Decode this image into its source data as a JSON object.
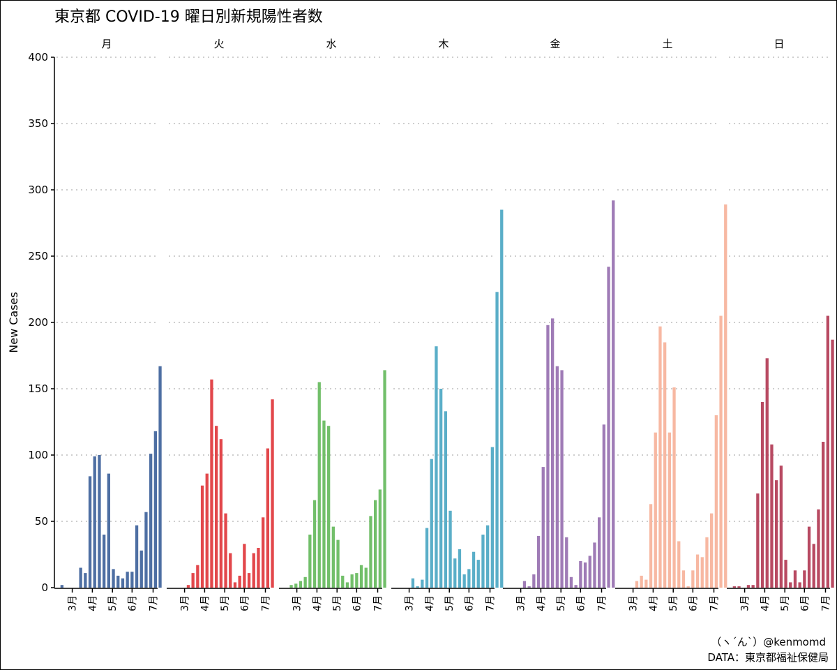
{
  "chart_data": {
    "type": "bar",
    "title": "東京都 COVID-19 曜日別新規陽性者数",
    "ylabel": "New Cases",
    "xlabel": "",
    "ylim": [
      0,
      400
    ],
    "y_ticks": [
      0,
      50,
      100,
      150,
      200,
      250,
      300,
      350,
      400
    ],
    "y_tick_labels": [
      "0",
      "50",
      "100",
      "150",
      "200",
      "250",
      "300",
      "350",
      "400"
    ],
    "grid": "horizontal dotted",
    "x_tick_labels": [
      "3月",
      "4月",
      "5月",
      "6月",
      "7月"
    ],
    "x_tick_positions": [
      2.2,
      6.5,
      10.8,
      15.0,
      19.5
    ],
    "facets": [
      {
        "label": "月",
        "color": "#4e6fa3",
        "values": [
          2,
          0,
          0,
          0,
          15,
          11,
          84,
          99,
          100,
          40,
          86,
          14,
          9,
          7,
          12,
          12,
          47,
          28,
          57,
          101,
          118,
          167
        ]
      },
      {
        "label": "火",
        "color": "#e2474b",
        "values": [
          0,
          0,
          0,
          2,
          11,
          17,
          77,
          86,
          157,
          122,
          112,
          56,
          26,
          4,
          9,
          33,
          11,
          26,
          30,
          53,
          105,
          142
        ]
      },
      {
        "label": "水",
        "color": "#72bf6a",
        "values": [
          0,
          2,
          3,
          5,
          8,
          40,
          66,
          155,
          126,
          122,
          46,
          36,
          9,
          4,
          10,
          11,
          17,
          15,
          54,
          66,
          74,
          164
        ]
      },
      {
        "label": "木",
        "color": "#5aaec8",
        "values": [
          0,
          0,
          0,
          7,
          1,
          6,
          45,
          97,
          182,
          150,
          133,
          58,
          22,
          29,
          10,
          14,
          27,
          21,
          40,
          47,
          106,
          223,
          285
        ]
      },
      {
        "label": "金",
        "color": "#9f7bb6",
        "values": [
          0,
          0,
          0,
          5,
          1,
          10,
          39,
          91,
          198,
          203,
          167,
          164,
          38,
          8,
          2,
          20,
          19,
          24,
          34,
          53,
          123,
          242,
          292
        ]
      },
      {
        "label": "土",
        "color": "#f7b8a2",
        "values": [
          0,
          0,
          0,
          5,
          9,
          6,
          63,
          117,
          197,
          185,
          117,
          151,
          35,
          13,
          1,
          13,
          25,
          23,
          38,
          56,
          130,
          205,
          289
        ]
      },
      {
        "label": "日",
        "color": "#b84a62",
        "values": [
          1,
          1,
          0,
          2,
          2,
          71,
          140,
          173,
          108,
          81,
          92,
          21,
          4,
          13,
          4,
          13,
          46,
          33,
          59,
          110,
          205,
          187
        ]
      }
    ]
  },
  "caption": {
    "line1": "（ヽ´ん`）@kenmomd",
    "line2": "DATA：東京都福祉保健局"
  }
}
